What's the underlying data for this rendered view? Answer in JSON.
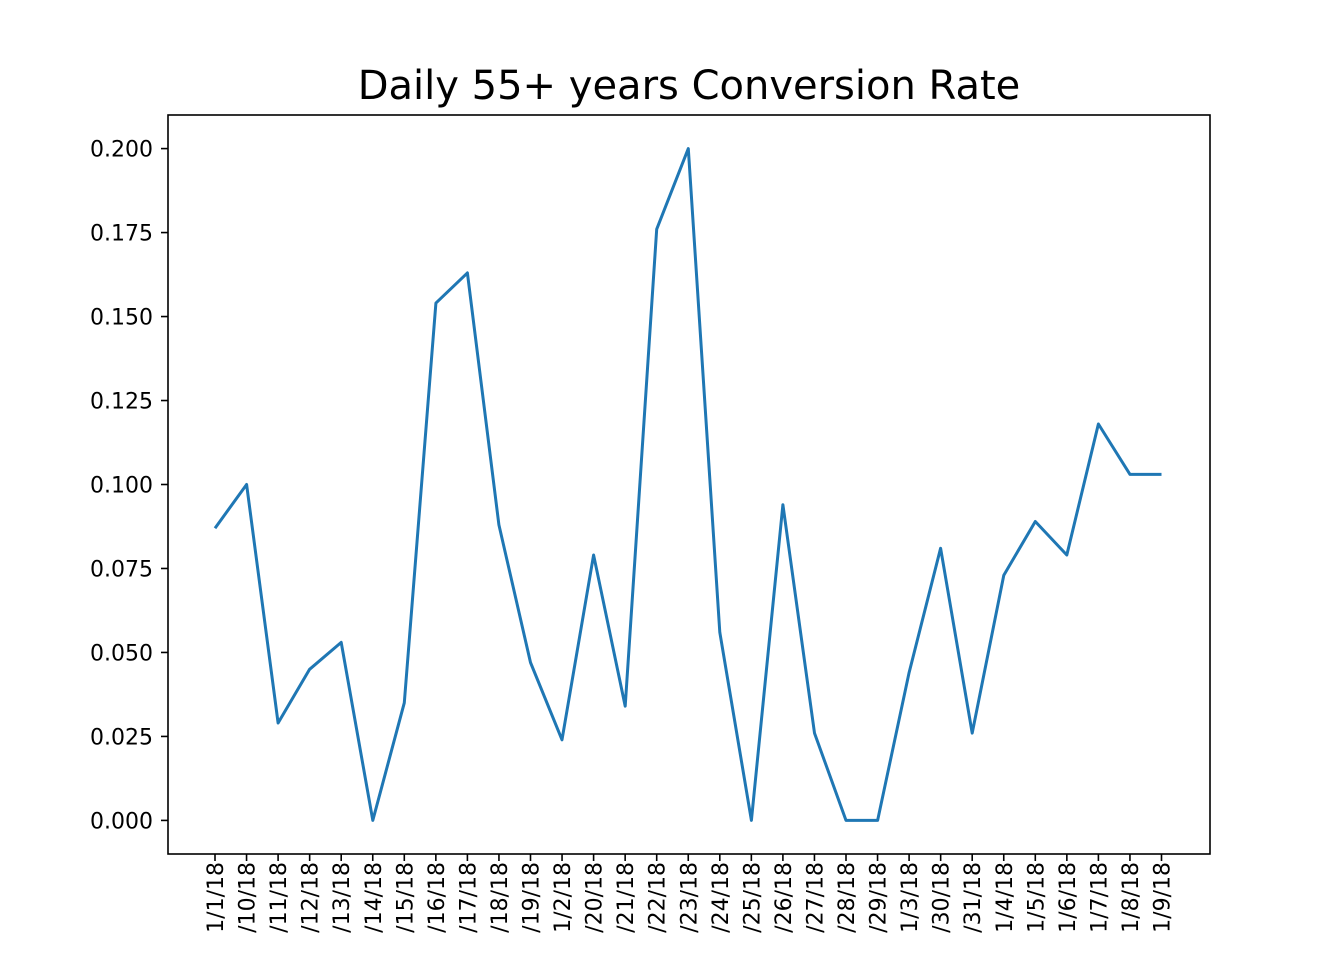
{
  "chart_data": {
    "type": "line",
    "title": "Daily 55+ years Conversion Rate",
    "xlabel": "",
    "ylabel": "",
    "x": [
      "1/1/18",
      "1/10/18",
      "1/11/18",
      "1/12/18",
      "1/13/18",
      "1/14/18",
      "1/15/18",
      "1/16/18",
      "1/17/18",
      "1/18/18",
      "1/19/18",
      "1/2/18",
      "1/20/18",
      "1/21/18",
      "1/22/18",
      "1/23/18",
      "1/24/18",
      "1/25/18",
      "1/26/18",
      "1/27/18",
      "1/28/18",
      "1/29/18",
      "1/3/18",
      "1/30/18",
      "1/31/18",
      "1/4/18",
      "1/5/18",
      "1/6/18",
      "1/7/18",
      "1/8/18",
      "1/9/18"
    ],
    "x_tick_labels_visible": [
      "1/1/18",
      "/10/18",
      "/11/18",
      "/12/18",
      "/13/18",
      "/14/18",
      "/15/18",
      "/16/18",
      "/17/18",
      "/18/18",
      "/19/18",
      "1/2/18",
      "/20/18",
      "/21/18",
      "/22/18",
      "/23/18",
      "/24/18",
      "/25/18",
      "/26/18",
      "/27/18",
      "/28/18",
      "/29/18",
      "1/3/18",
      "/30/18",
      "/31/18",
      "1/4/18",
      "1/5/18",
      "1/6/18",
      "1/7/18",
      "1/8/18",
      "1/9/18"
    ],
    "series": [
      {
        "values": [
          0.087,
          0.1,
          0.029,
          0.045,
          0.053,
          0.0,
          0.035,
          0.154,
          0.163,
          0.088,
          0.047,
          0.024,
          0.079,
          0.034,
          0.176,
          0.2,
          0.056,
          0.0,
          0.094,
          0.026,
          0.0,
          0.0,
          0.044,
          0.081,
          0.026,
          0.073,
          0.089,
          0.079,
          0.118,
          0.103,
          0.103
        ],
        "color": "#1f77b4"
      }
    ],
    "ylim": [
      -0.01,
      0.21
    ],
    "yticks": [
      0.0,
      0.025,
      0.05,
      0.075,
      0.1,
      0.125,
      0.15,
      0.175,
      0.2
    ],
    "ytick_labels": [
      "0.000",
      "0.025",
      "0.050",
      "0.075",
      "0.100",
      "0.125",
      "0.150",
      "0.175",
      "0.200"
    ],
    "grid": false,
    "legend": "none"
  }
}
